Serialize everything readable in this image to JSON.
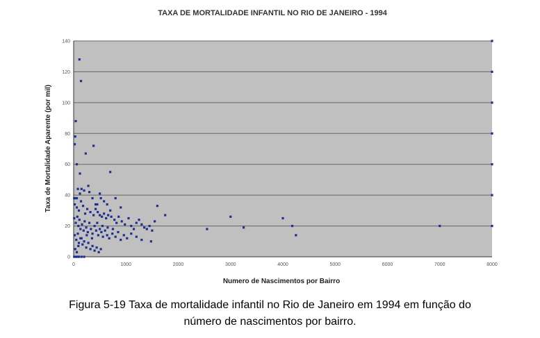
{
  "chart_data": {
    "type": "scatter",
    "title": "TAXA DE MORTALIDADE INFANTIL NO RIO DE JANEIRO - 1994",
    "xlabel": "Numero de Nascimentos por Bairro",
    "ylabel": "Taxa de Mortalidade Aparente (por mil)",
    "xlim": [
      0,
      8000
    ],
    "ylim": [
      0,
      140
    ],
    "xticks": [
      "0",
      "1000",
      "2000",
      "3000",
      "4000",
      "5000",
      "6000",
      "7000",
      "8000"
    ],
    "yticks": [
      "0",
      "20",
      "40",
      "60",
      "80",
      "100",
      "120",
      "140"
    ],
    "grid": "horizontal",
    "legend": "none",
    "colors": {
      "marker": "#1f2f8f",
      "plot_background": "#c0c0c0",
      "gridline": "#666666"
    },
    "series": [
      {
        "values": [
          [
            110,
            128
          ],
          [
            140,
            114
          ],
          [
            40,
            88
          ],
          [
            30,
            78
          ],
          [
            20,
            73
          ],
          [
            380,
            72
          ],
          [
            230,
            67
          ],
          [
            60,
            60
          ],
          [
            700,
            55
          ],
          [
            120,
            54
          ],
          [
            10,
            38
          ],
          [
            30,
            38
          ],
          [
            60,
            38
          ],
          [
            80,
            44
          ],
          [
            120,
            41
          ],
          [
            150,
            44
          ],
          [
            200,
            43
          ],
          [
            280,
            46
          ],
          [
            300,
            42
          ],
          [
            360,
            38
          ],
          [
            420,
            34
          ],
          [
            450,
            34
          ],
          [
            500,
            41
          ],
          [
            520,
            38
          ],
          [
            580,
            36
          ],
          [
            640,
            34
          ],
          [
            700,
            30
          ],
          [
            800,
            38
          ],
          [
            900,
            32
          ],
          [
            20,
            34
          ],
          [
            60,
            32
          ],
          [
            100,
            30
          ],
          [
            140,
            36
          ],
          [
            180,
            33
          ],
          [
            220,
            28
          ],
          [
            260,
            31
          ],
          [
            320,
            29
          ],
          [
            380,
            27
          ],
          [
            420,
            31
          ],
          [
            460,
            29
          ],
          [
            500,
            27
          ],
          [
            540,
            26
          ],
          [
            580,
            28
          ],
          [
            620,
            25
          ],
          [
            660,
            27
          ],
          [
            720,
            26
          ],
          [
            780,
            24
          ],
          [
            820,
            22
          ],
          [
            860,
            26
          ],
          [
            920,
            23
          ],
          [
            980,
            21
          ],
          [
            1050,
            25
          ],
          [
            1100,
            20
          ],
          [
            1150,
            18
          ],
          [
            1200,
            22
          ],
          [
            1250,
            24
          ],
          [
            1300,
            21
          ],
          [
            1350,
            19
          ],
          [
            1400,
            18
          ],
          [
            1450,
            20
          ],
          [
            1500,
            17
          ],
          [
            1550,
            23
          ],
          [
            1600,
            33
          ],
          [
            1750,
            27
          ],
          [
            10,
            25
          ],
          [
            40,
            22
          ],
          [
            70,
            26
          ],
          [
            90,
            20
          ],
          [
            110,
            24
          ],
          [
            130,
            18
          ],
          [
            160,
            21
          ],
          [
            190,
            17
          ],
          [
            210,
            23
          ],
          [
            240,
            19
          ],
          [
            270,
            16
          ],
          [
            300,
            22
          ],
          [
            330,
            18
          ],
          [
            360,
            15
          ],
          [
            400,
            20
          ],
          [
            430,
            17
          ],
          [
            470,
            14
          ],
          [
            500,
            18
          ],
          [
            530,
            16
          ],
          [
            560,
            13
          ],
          [
            600,
            17
          ],
          [
            640,
            14
          ],
          [
            680,
            12
          ],
          [
            740,
            15
          ],
          [
            800,
            13
          ],
          [
            850,
            16
          ],
          [
            900,
            11
          ],
          [
            960,
            14
          ],
          [
            1020,
            12
          ],
          [
            1100,
            15
          ],
          [
            1200,
            13
          ],
          [
            1300,
            11
          ],
          [
            1480,
            10
          ],
          [
            20,
            14
          ],
          [
            50,
            11
          ],
          [
            80,
            15
          ],
          [
            100,
            9
          ],
          [
            130,
            12
          ],
          [
            170,
            8
          ],
          [
            200,
            10
          ],
          [
            240,
            6
          ],
          [
            280,
            9
          ],
          [
            320,
            5
          ],
          [
            360,
            7
          ],
          [
            400,
            4
          ],
          [
            440,
            6
          ],
          [
            480,
            3
          ],
          [
            520,
            5
          ],
          [
            10,
            0
          ],
          [
            40,
            0
          ],
          [
            70,
            0
          ],
          [
            100,
            0
          ],
          [
            150,
            0
          ],
          [
            200,
            0
          ],
          [
            30,
            5
          ],
          [
            60,
            3
          ],
          [
            90,
            7
          ],
          [
            150,
            12
          ],
          [
            250,
            14
          ],
          [
            350,
            12
          ],
          [
            450,
            22
          ],
          [
            550,
            20
          ],
          [
            650,
            19
          ],
          [
            750,
            18
          ],
          [
            2550,
            18
          ],
          [
            3000,
            26
          ],
          [
            3250,
            19
          ],
          [
            4000,
            25
          ],
          [
            4180,
            20
          ],
          [
            4250,
            14
          ],
          [
            7000,
            20
          ],
          [
            8000,
            140
          ],
          [
            8000,
            120
          ],
          [
            8000,
            100
          ],
          [
            8000,
            80
          ],
          [
            8000,
            60
          ],
          [
            8000,
            40
          ],
          [
            8000,
            20
          ]
        ]
      }
    ]
  },
  "caption": {
    "line1": "Figura 5-19 Taxa de mortalidade infantil no Rio de Janeiro em 1994 em função do",
    "line2": "número de nascimentos por bairro."
  }
}
